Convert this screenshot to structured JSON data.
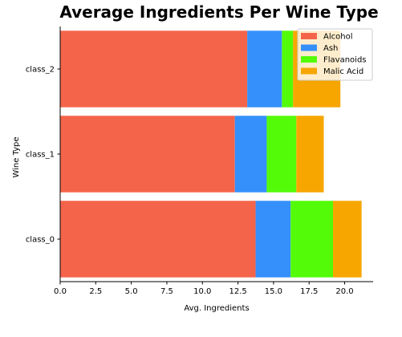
{
  "chart_data": {
    "type": "bar",
    "orientation": "horizontal",
    "stacked": true,
    "title": "Average Ingredients Per Wine Type",
    "xlabel": "Avg. Ingredients",
    "ylabel": "Wine Type",
    "categories": [
      "class_0",
      "class_1",
      "class_2"
    ],
    "xlim": [
      0,
      22.0
    ],
    "xticks": [
      "0.0",
      "2.5",
      "5.0",
      "7.5",
      "10.0",
      "12.5",
      "15.0",
      "17.5",
      "20.0"
    ],
    "grid": false,
    "legend_position": "top-right",
    "series": [
      {
        "name": "Alcohol",
        "color": "#f4644a",
        "values": [
          13.74,
          12.28,
          13.15
        ]
      },
      {
        "name": "Ash",
        "color": "#3590fb",
        "values": [
          2.46,
          2.24,
          2.44
        ]
      },
      {
        "name": "Flavanoids",
        "color": "#54fb09",
        "values": [
          2.98,
          2.08,
          0.78
        ]
      },
      {
        "name": "Malic Acid",
        "color": "#f7a600",
        "values": [
          2.01,
          1.93,
          3.33
        ]
      }
    ]
  }
}
